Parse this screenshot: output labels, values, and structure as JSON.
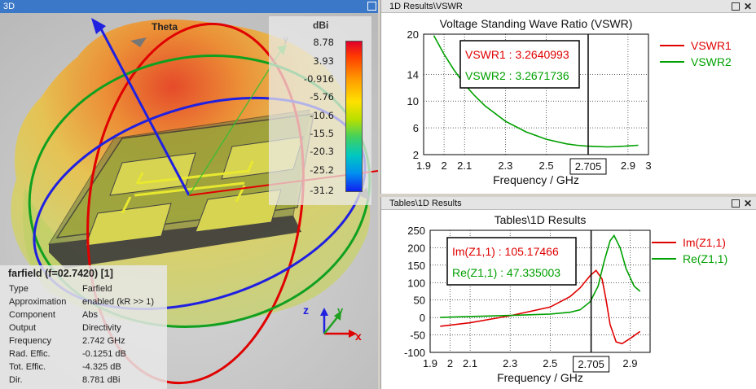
{
  "panel3d": {
    "title": "3D",
    "theta_label": "Theta",
    "y_axis_small": "y",
    "colorbar": {
      "unit": "dBi",
      "ticks": [
        "8.78",
        "3.93",
        "-0.916",
        "-5.76",
        "-10.6",
        "-15.5",
        "-20.3",
        "-25.2",
        "-31.2"
      ]
    },
    "axes": {
      "x": "x",
      "y": "y",
      "z": "z"
    },
    "info": {
      "title": "farfield (f=02.7420) [1]",
      "rows": [
        {
          "label": "Type",
          "value": "Farfield"
        },
        {
          "label": "Approximation",
          "value": "enabled (kR >> 1)"
        },
        {
          "label": "Component",
          "value": "Abs"
        },
        {
          "label": "Output",
          "value": "Directivity"
        },
        {
          "label": "Frequency",
          "value": "2.742 GHz"
        },
        {
          "label": "Rad. Effic.",
          "value": "-0.1251 dB"
        },
        {
          "label": "Tot. Effic.",
          "value": "-4.325 dB"
        },
        {
          "label": "Dir.",
          "value": "8.781 dBi"
        }
      ]
    }
  },
  "vswr_panel": {
    "title": "1D Results\\VSWR",
    "chart_data": {
      "type": "line",
      "title": "Voltage Standing Wave Ratio (VSWR)",
      "xlabel": "Frequency / GHz",
      "ylabel": "",
      "xlim": [
        1.9,
        3.0
      ],
      "ylim": [
        2,
        20
      ],
      "xticks": [
        "1.9",
        "2",
        "2.1",
        "2.3",
        "2.5",
        "2.705",
        "2.9",
        "3"
      ],
      "xtick_values": [
        1.9,
        2.0,
        2.1,
        2.3,
        2.5,
        2.705,
        2.9,
        3.0
      ],
      "yticks": [
        "20",
        "14",
        "10",
        "6",
        "2"
      ],
      "ytick_values": [
        20,
        14,
        10,
        6,
        2
      ],
      "marker_x": 2.705,
      "marker_label": "2.705",
      "annotations": [
        "VSWR1 : 3.2640993",
        "VSWR2 : 3.2671736"
      ],
      "legend_position": "right",
      "series": [
        {
          "name": "VSWR1",
          "color": "#e00000",
          "x": [],
          "y": []
        },
        {
          "name": "VSWR2",
          "color": "#00a000",
          "x": [
            1.95,
            2.0,
            2.05,
            2.1,
            2.15,
            2.2,
            2.3,
            2.4,
            2.5,
            2.6,
            2.65,
            2.7,
            2.75,
            2.8,
            2.85,
            2.9,
            2.95
          ],
          "y": [
            19.8,
            17.0,
            14.6,
            12.5,
            10.8,
            9.3,
            7.0,
            5.4,
            4.3,
            3.6,
            3.4,
            3.27,
            3.2,
            3.15,
            3.2,
            3.3,
            3.4
          ]
        }
      ]
    }
  },
  "tables_panel": {
    "title": "Tables\\1D Results",
    "chart_data": {
      "type": "line",
      "title": "Tables\\1D Results",
      "xlabel": "Frequency / GHz",
      "ylabel": "",
      "xlim": [
        1.9,
        3.0
      ],
      "ylim": [
        -100,
        250
      ],
      "xticks": [
        "1.9",
        "2",
        "2.1",
        "2.3",
        "2.5",
        "2.705",
        "2.9"
      ],
      "xtick_values": [
        1.9,
        2.0,
        2.1,
        2.3,
        2.5,
        2.705,
        2.9
      ],
      "yticks": [
        "250",
        "200",
        "150",
        "100",
        "50",
        "0",
        "-50",
        "-100"
      ],
      "ytick_values": [
        250,
        200,
        150,
        100,
        50,
        0,
        -50,
        -100
      ],
      "marker_x": 2.705,
      "marker_label": "2.705",
      "annotations": [
        "Im(Z1,1) : 105.17466",
        "Re(Z1,1) : 47.335003"
      ],
      "legend_position": "right",
      "series": [
        {
          "name": "Im(Z1,1)",
          "color": "#e00000",
          "x": [
            1.95,
            2.1,
            2.3,
            2.5,
            2.6,
            2.65,
            2.7,
            2.73,
            2.76,
            2.78,
            2.8,
            2.83,
            2.86,
            2.9,
            2.95
          ],
          "y": [
            -25,
            -15,
            5,
            30,
            60,
            85,
            120,
            135,
            110,
            50,
            -20,
            -70,
            -75,
            -60,
            -40
          ]
        },
        {
          "name": "Re(Z1,1)",
          "color": "#00a000",
          "x": [
            1.95,
            2.1,
            2.3,
            2.5,
            2.6,
            2.65,
            2.7,
            2.74,
            2.77,
            2.8,
            2.82,
            2.85,
            2.88,
            2.92,
            2.95
          ],
          "y": [
            0,
            3,
            6,
            10,
            15,
            22,
            45,
            90,
            160,
            220,
            235,
            200,
            140,
            90,
            75
          ]
        }
      ]
    }
  }
}
